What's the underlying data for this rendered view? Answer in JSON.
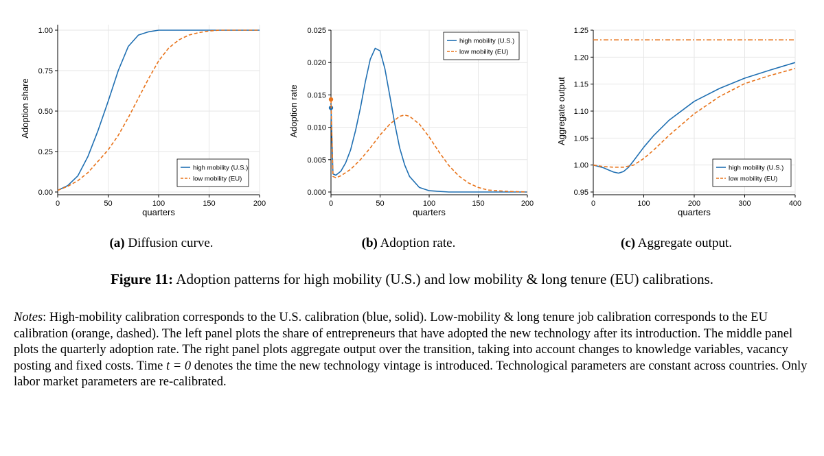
{
  "chart_data": [
    {
      "type": "line",
      "xlabel": "quarters",
      "ylabel": "Adoption share",
      "xlim": [
        0,
        200
      ],
      "ylim": [
        0,
        1.0
      ],
      "xticks": [
        0,
        50,
        100,
        150,
        200
      ],
      "xtick_labels": [
        "0",
        "50",
        "100",
        "150",
        "200"
      ],
      "yticks": [
        0,
        0.25,
        0.5,
        0.75,
        1.0
      ],
      "ytick_labels": [
        "0.00",
        "0.25",
        "0.50",
        "0.75",
        "1.00"
      ],
      "grid": true,
      "legend_position": "bottom-right",
      "series": [
        {
          "name": "high mobility (U.S.)",
          "color": "#1f6fb2",
          "style": "solid",
          "x": [
            0,
            10,
            20,
            30,
            40,
            50,
            60,
            70,
            80,
            90,
            100,
            120,
            140,
            160,
            180,
            200
          ],
          "y": [
            0.01,
            0.04,
            0.1,
            0.22,
            0.38,
            0.56,
            0.75,
            0.9,
            0.97,
            0.99,
            1.0,
            1.0,
            1.0,
            1.0,
            1.0,
            1.0
          ]
        },
        {
          "name": "low mobility (EU)",
          "color": "#e8731a",
          "style": "dashed",
          "x": [
            0,
            10,
            20,
            30,
            40,
            50,
            60,
            70,
            80,
            90,
            100,
            110,
            120,
            130,
            140,
            150,
            160,
            180,
            200
          ],
          "y": [
            0.01,
            0.035,
            0.07,
            0.12,
            0.19,
            0.26,
            0.35,
            0.46,
            0.58,
            0.7,
            0.81,
            0.89,
            0.94,
            0.97,
            0.985,
            0.995,
            1.0,
            1.0,
            1.0
          ]
        }
      ]
    },
    {
      "type": "line",
      "xlabel": "quarters",
      "ylabel": "Adoption rate",
      "xlim": [
        0,
        200
      ],
      "ylim": [
        0,
        0.025
      ],
      "xticks": [
        0,
        50,
        100,
        150,
        200
      ],
      "xtick_labels": [
        "0",
        "50",
        "100",
        "150",
        "200"
      ],
      "yticks": [
        0,
        0.005,
        0.01,
        0.015,
        0.02,
        0.025
      ],
      "ytick_labels": [
        "0.000",
        "0.005",
        "0.010",
        "0.015",
        "0.020",
        "0.025"
      ],
      "grid": true,
      "legend_position": "top-right",
      "series": [
        {
          "name": "high mobility (U.S.)",
          "color": "#1f6fb2",
          "style": "solid",
          "x": [
            0,
            2,
            5,
            10,
            15,
            20,
            25,
            30,
            35,
            40,
            45,
            50,
            55,
            60,
            65,
            70,
            75,
            80,
            90,
            100,
            120,
            150,
            200
          ],
          "y": [
            0.013,
            0.0028,
            0.0026,
            0.0032,
            0.0045,
            0.0065,
            0.0095,
            0.013,
            0.017,
            0.0205,
            0.0222,
            0.0218,
            0.019,
            0.0148,
            0.0105,
            0.0068,
            0.0042,
            0.0024,
            0.0007,
            0.0002,
            0.0,
            0.0,
            0.0
          ],
          "start_marker": 0.013
        },
        {
          "name": "low mobility (EU)",
          "color": "#e8731a",
          "style": "dashed",
          "x": [
            0,
            2,
            5,
            10,
            20,
            30,
            40,
            50,
            60,
            70,
            75,
            80,
            90,
            100,
            110,
            120,
            130,
            140,
            150,
            160,
            180,
            200
          ],
          "y": [
            0.0143,
            0.0024,
            0.0022,
            0.0025,
            0.0035,
            0.005,
            0.0068,
            0.0088,
            0.0105,
            0.0117,
            0.0119,
            0.0117,
            0.0105,
            0.0085,
            0.0062,
            0.0041,
            0.0025,
            0.0014,
            0.0007,
            0.0003,
            0.0001,
            0.0
          ],
          "start_marker": 0.0143
        }
      ]
    },
    {
      "type": "line",
      "xlabel": "quarters",
      "ylabel": "Aggregate output",
      "xlim": [
        0,
        400
      ],
      "ylim": [
        0.95,
        1.25
      ],
      "xticks": [
        0,
        100,
        200,
        300,
        400
      ],
      "xtick_labels": [
        "0",
        "100",
        "200",
        "300",
        "400"
      ],
      "yticks": [
        0.95,
        1.0,
        1.05,
        1.1,
        1.15,
        1.2,
        1.25
      ],
      "ytick_labels": [
        "0.95",
        "1.00",
        "1.05",
        "1.10",
        "1.15",
        "1.20",
        "1.25"
      ],
      "grid": true,
      "legend_position": "bottom-right",
      "hline": {
        "y": 1.232,
        "color": "#e8731a",
        "style": "dashdot"
      },
      "series": [
        {
          "name": "high mobility (U.S.)",
          "color": "#1f6fb2",
          "style": "solid",
          "x": [
            0,
            20,
            40,
            50,
            60,
            70,
            80,
            100,
            120,
            150,
            200,
            250,
            300,
            350,
            400
          ],
          "y": [
            1.0,
            0.995,
            0.987,
            0.985,
            0.988,
            0.996,
            1.008,
            1.033,
            1.055,
            1.083,
            1.118,
            1.142,
            1.161,
            1.176,
            1.19
          ]
        },
        {
          "name": "low mobility (EU)",
          "color": "#e8731a",
          "style": "dashed",
          "x": [
            0,
            20,
            40,
            60,
            80,
            100,
            120,
            150,
            200,
            250,
            300,
            350,
            400
          ],
          "y": [
            1.0,
            0.997,
            0.996,
            0.996,
            1.0,
            1.012,
            1.028,
            1.055,
            1.095,
            1.127,
            1.151,
            1.166,
            1.179
          ]
        }
      ]
    }
  ],
  "captions": [
    {
      "label": "(a)",
      "text": "Diffusion curve."
    },
    {
      "label": "(b)",
      "text": "Adoption rate."
    },
    {
      "label": "(c)",
      "text": "Aggregate output."
    }
  ],
  "figure": {
    "label": "Figure 11:",
    "text": "Adoption patterns for high mobility (U.S.) and low mobility & long tenure (EU) calibrations."
  },
  "notes": {
    "label": "Notes",
    "part1": ": High-mobility calibration corresponds to the U.S. calibration (blue, solid). Low-mobility & long tenure job calibration corresponds to the EU calibration (orange, dashed). The left panel plots the share of entrepreneurs that have adopted the new technology after its introduction. The middle panel plots the quarterly adoption rate. The right panel plots aggregate output over the transition, taking into account changes to knowledge variables, vacancy posting and fixed costs. Time ",
    "math": "t = 0",
    "part2": " denotes the time the new technology vintage is introduced. Technological parameters are constant across countries. Only labor market parameters are re-calibrated."
  }
}
